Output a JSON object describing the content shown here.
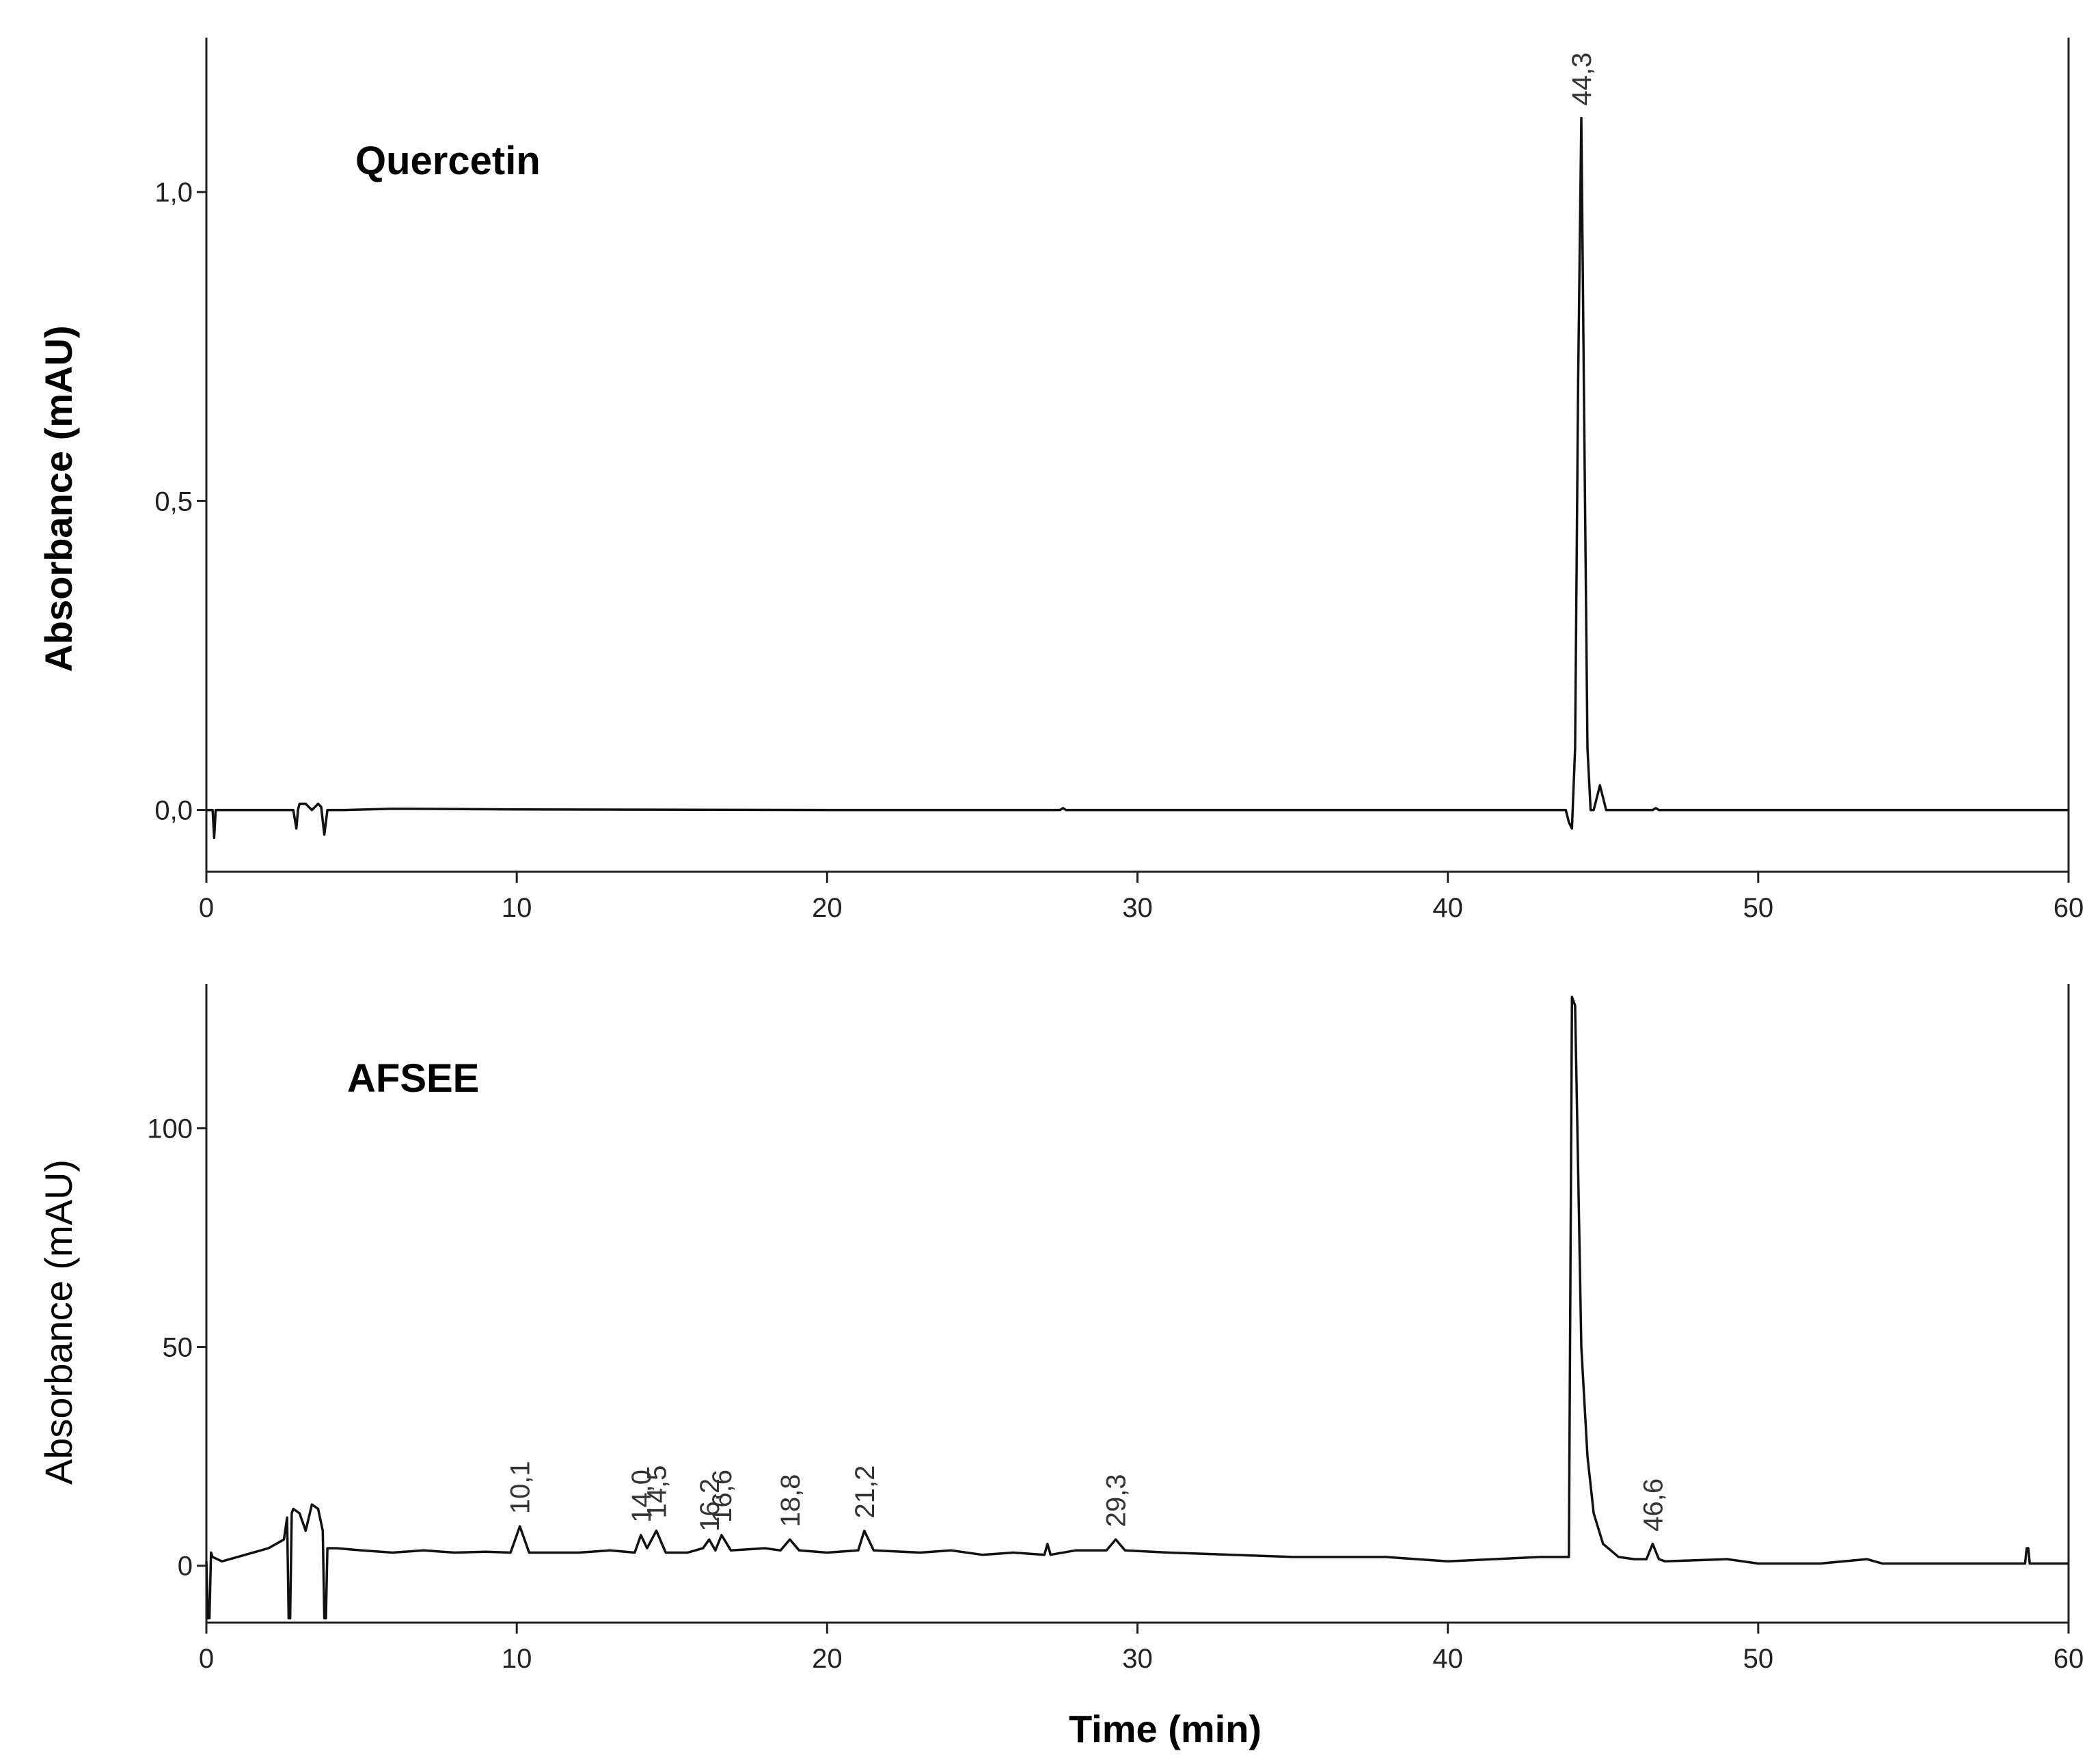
{
  "chart_data": [
    {
      "type": "line",
      "title": "Quercetin",
      "ylabel": "Absorbance (mAU)",
      "xlabel": "",
      "xlim": [
        0,
        60
      ],
      "ylim": [
        -0.1,
        1.25
      ],
      "xticks": [
        "0",
        "10",
        "20",
        "30",
        "40",
        "50",
        "60"
      ],
      "yticks": [
        {
          "value": 0.0,
          "label": "0,0"
        },
        {
          "value": 0.5,
          "label": "0,5"
        },
        {
          "value": 1.0,
          "label": "1,0"
        }
      ],
      "peaks": [
        {
          "label": "44,3",
          "time": 44.3,
          "height": 1.12
        }
      ],
      "series": [
        {
          "x": [
            0,
            0.2,
            0.25,
            0.3,
            0.4,
            2.8,
            2.9,
            2.95,
            3.0,
            3.2,
            3.4,
            3.6,
            3.7,
            3.8,
            3.9,
            4.0,
            4.5,
            6,
            10,
            20,
            27.5,
            27.6,
            27.7,
            30,
            40,
            43.8,
            43.9,
            44.0,
            44.1,
            44.2,
            44.3,
            44.4,
            44.5,
            44.6,
            44.7,
            44.8,
            44.9,
            45.0,
            45.1,
            45.3,
            46.6,
            46.7,
            46.8,
            50,
            60
          ],
          "y": [
            0.0,
            0.0,
            -0.045,
            0.0,
            0.0,
            0.0,
            -0.03,
            0.0,
            0.01,
            0.01,
            0.0,
            0.01,
            0.005,
            -0.04,
            0.0,
            0.0,
            0.0,
            0.002,
            0.001,
            0.0,
            0.0,
            0.003,
            0.0,
            0.0,
            0.0,
            0.0,
            -0.02,
            -0.03,
            0.1,
            0.7,
            1.12,
            0.6,
            0.1,
            0.0,
            0.0,
            0.02,
            0.04,
            0.02,
            0.0,
            0.0,
            0.0,
            0.003,
            0.0,
            0.0,
            0.0
          ]
        }
      ]
    },
    {
      "type": "line",
      "title": "AFSEE",
      "ylabel": "Absorbance (mAU)",
      "xlabel": "Time (min)",
      "xlim": [
        0,
        60
      ],
      "ylim": [
        -13,
        133
      ],
      "xticks": [
        "0",
        "10",
        "20",
        "30",
        "40",
        "50",
        "60"
      ],
      "yticks": [
        {
          "value": 0,
          "label": "0"
        },
        {
          "value": 50,
          "label": "50"
        },
        {
          "value": 100,
          "label": "100"
        }
      ],
      "peaks": [
        {
          "label": "10,1",
          "time": 10.1,
          "height": 9
        },
        {
          "label": "14,0",
          "time": 14.0,
          "height": 7
        },
        {
          "label": "14,5",
          "time": 14.5,
          "height": 8
        },
        {
          "label": "16,2",
          "time": 16.2,
          "height": 5
        },
        {
          "label": "16,6",
          "time": 16.6,
          "height": 7
        },
        {
          "label": "18,8",
          "time": 18.8,
          "height": 6
        },
        {
          "label": "21,2",
          "time": 21.2,
          "height": 8
        },
        {
          "label": "29,3",
          "time": 29.3,
          "height": 6
        },
        {
          "label": "46,6",
          "time": 46.6,
          "height": 5
        }
      ],
      "series": [
        {
          "x": [
            0,
            0.05,
            0.1,
            0.15,
            0.2,
            0.5,
            1.0,
            2.0,
            2.5,
            2.6,
            2.65,
            2.7,
            2.75,
            2.8,
            3.0,
            3.2,
            3.4,
            3.6,
            3.75,
            3.8,
            3.85,
            3.9,
            4.2,
            5,
            6,
            7,
            8,
            9,
            9.8,
            10.1,
            10.4,
            11,
            12,
            13,
            13.8,
            14.0,
            14.2,
            14.5,
            14.8,
            15.5,
            16.0,
            16.2,
            16.4,
            16.6,
            16.9,
            18,
            18.5,
            18.8,
            19.1,
            20,
            21.0,
            21.2,
            21.5,
            23,
            24,
            25,
            26,
            27,
            27.1,
            27.2,
            28,
            29.0,
            29.3,
            29.6,
            31,
            35,
            38,
            40,
            43,
            43.9,
            44.0,
            44.1,
            44.2,
            44.3,
            44.5,
            44.7,
            45.0,
            45.5,
            46.0,
            46.4,
            46.6,
            46.8,
            47,
            49,
            50,
            52,
            53.5,
            54,
            56,
            58.6,
            58.65,
            58.7,
            58.75,
            60
          ],
          "y": [
            1,
            -12,
            -12,
            3,
            2,
            1,
            2,
            4,
            6,
            11,
            -12,
            -12,
            12,
            13,
            12,
            8,
            14,
            13,
            8,
            -12,
            -12,
            4,
            4,
            3.5,
            3,
            3.5,
            3,
            3.2,
            3,
            9,
            3,
            3,
            3,
            3.5,
            3,
            7,
            4,
            8,
            3,
            3,
            4,
            6,
            3.5,
            7,
            3.5,
            4,
            3.5,
            6,
            3.5,
            3,
            3.5,
            8,
            3.5,
            3,
            3.5,
            2.5,
            3,
            2.5,
            5,
            2.5,
            3.5,
            3.5,
            6,
            3.5,
            3,
            2,
            2,
            1,
            2,
            2,
            130,
            128,
            90,
            50,
            25,
            12,
            5,
            2,
            1.5,
            1.5,
            5,
            1.5,
            1,
            1.5,
            0.5,
            0.5,
            1.5,
            0.5,
            0.5,
            0.5,
            4,
            4,
            0.5,
            0.5
          ]
        }
      ]
    }
  ]
}
